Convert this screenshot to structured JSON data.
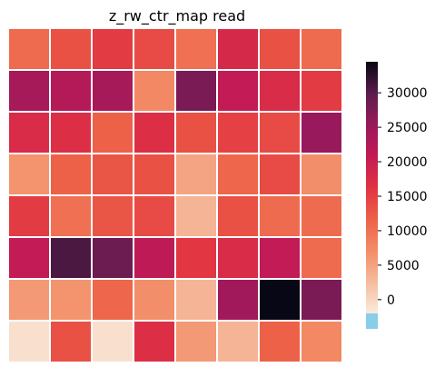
{
  "chart_data": {
    "type": "heatmap",
    "title": "z_rw_ctr_map read",
    "rows": 8,
    "cols": 8,
    "values": [
      [
        12000,
        14500,
        16500,
        15000,
        11500,
        19000,
        14500,
        12000
      ],
      [
        24500,
        23000,
        24500,
        9000,
        28000,
        21500,
        18500,
        16500
      ],
      [
        18500,
        18000,
        13000,
        18000,
        14500,
        16000,
        15000,
        26000
      ],
      [
        8000,
        13000,
        14000,
        14500,
        6500,
        12500,
        15000,
        8500
      ],
      [
        16500,
        11500,
        14000,
        15000,
        5000,
        14500,
        12000,
        12000
      ],
      [
        21500,
        31000,
        29000,
        22000,
        17000,
        18500,
        21500,
        12000
      ],
      [
        7500,
        8000,
        12500,
        8500,
        5000,
        25000,
        34500,
        28000
      ],
      [
        1000,
        14500,
        1000,
        18000,
        7500,
        5000,
        13000,
        9000
      ]
    ],
    "colorbar": {
      "min": -2000,
      "max": 34500,
      "ticks": [
        0,
        5000,
        10000,
        15000,
        20000,
        25000,
        30000
      ],
      "tick_labels": [
        "0",
        "5000",
        "10000",
        "15000",
        "20000",
        "25000",
        "30000"
      ],
      "under_color": "#87ceeb"
    },
    "colormap": "rocket_r",
    "grid_line_color": "#ffffff",
    "legend_position": "right"
  }
}
